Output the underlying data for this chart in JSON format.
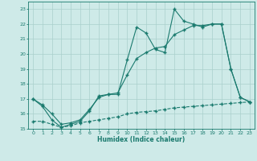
{
  "line1_x": [
    0,
    1,
    2,
    3,
    4,
    5,
    6,
    7,
    8,
    9,
    10,
    11,
    12,
    13,
    14,
    15,
    16,
    17,
    18,
    19,
    20,
    21,
    22,
    23
  ],
  "line1_y": [
    17.0,
    16.5,
    15.6,
    15.1,
    15.3,
    15.5,
    16.2,
    17.2,
    17.3,
    17.3,
    19.6,
    21.8,
    21.4,
    20.3,
    20.1,
    23.0,
    22.2,
    22.0,
    21.8,
    22.0,
    22.0,
    19.0,
    17.1,
    16.8
  ],
  "line2_x": [
    0,
    1,
    2,
    3,
    4,
    5,
    6,
    7,
    8,
    9,
    10,
    11,
    12,
    13,
    14,
    15,
    16,
    17,
    18,
    19,
    20,
    21,
    22,
    23
  ],
  "line2_y": [
    17.0,
    16.6,
    16.0,
    15.3,
    15.4,
    15.6,
    16.3,
    17.1,
    17.3,
    17.4,
    18.6,
    19.7,
    20.1,
    20.4,
    20.5,
    21.3,
    21.6,
    21.9,
    21.9,
    22.0,
    22.0,
    19.0,
    17.1,
    16.8
  ],
  "line3_x": [
    0,
    1,
    2,
    3,
    4,
    5,
    6,
    7,
    8,
    9,
    10,
    11,
    12,
    13,
    14,
    15,
    16,
    17,
    18,
    19,
    20,
    21,
    22,
    23
  ],
  "line3_y": [
    15.5,
    15.5,
    15.3,
    15.1,
    15.2,
    15.4,
    15.5,
    15.6,
    15.7,
    15.8,
    16.0,
    16.1,
    16.15,
    16.2,
    16.3,
    16.4,
    16.45,
    16.5,
    16.55,
    16.6,
    16.65,
    16.7,
    16.75,
    16.8
  ],
  "color": "#1a7a6e",
  "bg_color": "#ceeae8",
  "grid_color": "#aacfcc",
  "xlabel": "Humidex (Indice chaleur)",
  "ylim": [
    15,
    23.5
  ],
  "xlim": [
    -0.5,
    23.5
  ],
  "yticks": [
    15,
    16,
    17,
    18,
    19,
    20,
    21,
    22,
    23
  ],
  "xticks": [
    0,
    1,
    2,
    3,
    4,
    5,
    6,
    7,
    8,
    9,
    10,
    11,
    12,
    13,
    14,
    15,
    16,
    17,
    18,
    19,
    20,
    21,
    22,
    23
  ]
}
